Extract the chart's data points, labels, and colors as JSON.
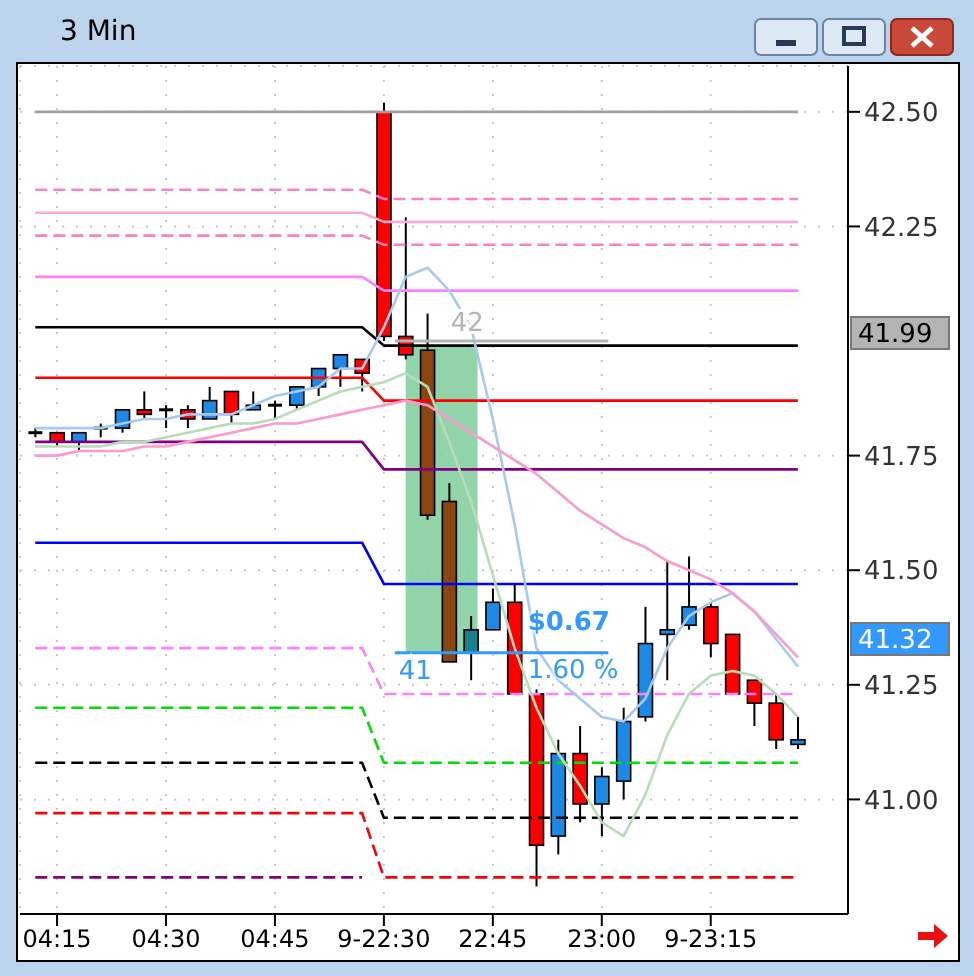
{
  "chart_data": {
    "type": "candlestick",
    "title": "3 Min",
    "categories": [
      null,
      "04:15",
      null,
      null,
      null,
      null,
      "04:30",
      null,
      null,
      null,
      null,
      "04:45",
      null,
      null,
      null,
      null,
      "9-22:30",
      null,
      null,
      null,
      null,
      "22:45",
      null,
      null,
      null,
      null,
      "23:00",
      null,
      null,
      null,
      null,
      "9-23:15",
      null,
      null,
      null,
      null
    ],
    "ohlc": [
      [
        41.8,
        41.81,
        41.79,
        41.8
      ],
      [
        41.8,
        41.8,
        41.77,
        41.78
      ],
      [
        41.78,
        41.8,
        41.76,
        41.8
      ],
      [
        41.81,
        41.82,
        41.79,
        41.81
      ],
      [
        41.81,
        41.85,
        41.8,
        41.85
      ],
      [
        41.85,
        41.89,
        41.83,
        41.84
      ],
      [
        41.85,
        41.86,
        41.81,
        41.85
      ],
      [
        41.85,
        41.86,
        41.81,
        41.83
      ],
      [
        41.83,
        41.9,
        41.83,
        41.87
      ],
      [
        41.89,
        41.89,
        41.82,
        41.84
      ],
      [
        41.85,
        41.89,
        41.85,
        41.86
      ],
      [
        41.86,
        41.87,
        41.83,
        41.86
      ],
      [
        41.86,
        41.9,
        41.85,
        41.9
      ],
      [
        41.9,
        41.94,
        41.88,
        41.94
      ],
      [
        41.94,
        41.97,
        41.9,
        41.97
      ],
      [
        41.96,
        41.96,
        41.89,
        41.93
      ],
      [
        42.5,
        42.52,
        42.0,
        42.01
      ],
      [
        42.01,
        42.27,
        41.96,
        41.97
      ],
      [
        41.98,
        42.06,
        41.61,
        41.62
      ],
      [
        41.65,
        41.69,
        41.3,
        41.3
      ],
      [
        41.32,
        41.4,
        41.26,
        41.37
      ],
      [
        41.37,
        41.46,
        41.37,
        41.43
      ],
      [
        41.43,
        41.47,
        41.23,
        41.23
      ],
      [
        41.23,
        41.24,
        40.81,
        40.9
      ],
      [
        40.92,
        41.13,
        40.88,
        41.1
      ],
      [
        41.1,
        41.16,
        40.95,
        40.99
      ],
      [
        40.99,
        41.07,
        40.92,
        41.05
      ],
      [
        41.04,
        41.2,
        41.0,
        41.17
      ],
      [
        41.18,
        41.42,
        41.17,
        41.34
      ],
      [
        41.36,
        41.52,
        41.26,
        41.37
      ],
      [
        41.38,
        41.53,
        41.37,
        41.42
      ],
      [
        41.42,
        41.43,
        41.31,
        41.34
      ],
      [
        41.36,
        41.36,
        41.23,
        41.23
      ],
      [
        41.26,
        41.26,
        41.16,
        41.21
      ],
      [
        41.21,
        41.23,
        41.11,
        41.13
      ],
      [
        41.12,
        41.18,
        41.11,
        41.13
      ]
    ],
    "colors": [
      "#000000",
      "#ff0000",
      "#1e88e5",
      "#000000",
      "#1e88e5",
      "#ff0000",
      "#000000",
      "#ff0000",
      "#1e88e5",
      "#ff0000",
      "#1e88e5",
      "#000000",
      "#1e88e5",
      "#1e88e5",
      "#1e88e5",
      "#ff0000",
      "#ff0000",
      "#ff0000",
      "#8b4513",
      "#8b4513",
      "#1a7f8f",
      "#1e88e5",
      "#ff0000",
      "#ff0000",
      "#1e88e5",
      "#ff0000",
      "#1e88e5",
      "#1e88e5",
      "#1e88e5",
      "#1e88e5",
      "#1e88e5",
      "#ff0000",
      "#ff0000",
      "#ff0000",
      "#ff0000",
      "#1e88e5"
    ],
    "series": [
      {
        "type": "line",
        "color": "#a0a0a0",
        "values": [
          42.5,
          42.5,
          42.5,
          42.5,
          42.5,
          42.5,
          42.5,
          42.5,
          42.5,
          42.5,
          42.5,
          42.5,
          42.5,
          42.5,
          42.5,
          42.5,
          42.5,
          42.5,
          42.5,
          42.5,
          42.5,
          42.5,
          42.5,
          42.5,
          42.5,
          42.5,
          42.5,
          42.5,
          42.5,
          42.5,
          42.5,
          42.5,
          42.5,
          42.5,
          42.5,
          42.5
        ]
      },
      {
        "type": "line",
        "color": "#ff80c0",
        "line_style": "dashed",
        "values": [
          42.33,
          42.33,
          42.33,
          42.33,
          42.33,
          42.33,
          42.33,
          42.33,
          42.33,
          42.33,
          42.33,
          42.33,
          42.33,
          42.33,
          42.33,
          42.33,
          42.31,
          42.31,
          42.31,
          42.31,
          42.31,
          42.31,
          42.31,
          42.31,
          42.31,
          42.31,
          42.31,
          42.31,
          42.31,
          42.31,
          42.31,
          42.31,
          42.31,
          42.31,
          42.31,
          42.31
        ]
      },
      {
        "type": "line",
        "color": "#ffaad4",
        "values": [
          42.28,
          42.28,
          42.28,
          42.28,
          42.28,
          42.28,
          42.28,
          42.28,
          42.28,
          42.28,
          42.28,
          42.28,
          42.28,
          42.28,
          42.28,
          42.28,
          42.26,
          42.26,
          42.26,
          42.26,
          42.26,
          42.26,
          42.26,
          42.26,
          42.26,
          42.26,
          42.26,
          42.26,
          42.26,
          42.26,
          42.26,
          42.26,
          42.26,
          42.26,
          42.26,
          42.26
        ]
      },
      {
        "type": "line",
        "color": "#ff80c0",
        "line_style": "dashed",
        "values": [
          42.23,
          42.23,
          42.23,
          42.23,
          42.23,
          42.23,
          42.23,
          42.23,
          42.23,
          42.23,
          42.23,
          42.23,
          42.23,
          42.23,
          42.23,
          42.23,
          42.21,
          42.21,
          42.21,
          42.21,
          42.21,
          42.21,
          42.21,
          42.21,
          42.21,
          42.21,
          42.21,
          42.21,
          42.21,
          42.21,
          42.21,
          42.21,
          42.21,
          42.21,
          42.21,
          42.21
        ]
      },
      {
        "type": "line",
        "color": "#ff80ff",
        "values": [
          42.14,
          42.14,
          42.14,
          42.14,
          42.14,
          42.14,
          42.14,
          42.14,
          42.14,
          42.14,
          42.14,
          42.14,
          42.14,
          42.14,
          42.14,
          42.14,
          42.11,
          42.11,
          42.11,
          42.11,
          42.11,
          42.11,
          42.11,
          42.11,
          42.11,
          42.11,
          42.11,
          42.11,
          42.11,
          42.11,
          42.11,
          42.11,
          42.11,
          42.11,
          42.11,
          42.11
        ]
      },
      {
        "type": "line",
        "color": "#000000",
        "values": [
          42.03,
          42.03,
          42.03,
          42.03,
          42.03,
          42.03,
          42.03,
          42.03,
          42.03,
          42.03,
          42.03,
          42.03,
          42.03,
          42.03,
          42.03,
          42.03,
          41.99,
          41.99,
          41.99,
          41.99,
          41.99,
          41.99,
          41.99,
          41.99,
          41.99,
          41.99,
          41.99,
          41.99,
          41.99,
          41.99,
          41.99,
          41.99,
          41.99,
          41.99,
          41.99,
          41.99
        ]
      },
      {
        "type": "line",
        "color": "#ff0000",
        "values": [
          41.92,
          41.92,
          41.92,
          41.92,
          41.92,
          41.92,
          41.92,
          41.92,
          41.92,
          41.92,
          41.92,
          41.92,
          41.92,
          41.92,
          41.92,
          41.92,
          41.87,
          41.87,
          41.87,
          41.87,
          41.87,
          41.87,
          41.87,
          41.87,
          41.87,
          41.87,
          41.87,
          41.87,
          41.87,
          41.87,
          41.87,
          41.87,
          41.87,
          41.87,
          41.87,
          41.87
        ]
      },
      {
        "type": "line",
        "color": "#800080",
        "values": [
          41.78,
          41.78,
          41.78,
          41.78,
          41.78,
          41.78,
          41.78,
          41.78,
          41.78,
          41.78,
          41.78,
          41.78,
          41.78,
          41.78,
          41.78,
          41.78,
          41.72,
          41.72,
          41.72,
          41.72,
          41.72,
          41.72,
          41.72,
          41.72,
          41.72,
          41.72,
          41.72,
          41.72,
          41.72,
          41.72,
          41.72,
          41.72,
          41.72,
          41.72,
          41.72,
          41.72
        ]
      },
      {
        "type": "line",
        "color": "#0000ff",
        "values": [
          41.56,
          41.56,
          41.56,
          41.56,
          41.56,
          41.56,
          41.56,
          41.56,
          41.56,
          41.56,
          41.56,
          41.56,
          41.56,
          41.56,
          41.56,
          41.56,
          41.47,
          41.47,
          41.47,
          41.47,
          41.47,
          41.47,
          41.47,
          41.47,
          41.47,
          41.47,
          41.47,
          41.47,
          41.47,
          41.47,
          41.47,
          41.47,
          41.47,
          41.47,
          41.47,
          41.47
        ]
      },
      {
        "type": "line",
        "color": "#ff80ff",
        "line_style": "dashed",
        "values": [
          41.33,
          41.33,
          41.33,
          41.33,
          41.33,
          41.33,
          41.33,
          41.33,
          41.33,
          41.33,
          41.33,
          41.33,
          41.33,
          41.33,
          41.33,
          41.33,
          41.23,
          41.23,
          41.23,
          41.23,
          41.23,
          41.23,
          41.23,
          41.23,
          41.23,
          41.23,
          41.23,
          41.23,
          41.23,
          41.23,
          41.23,
          41.23,
          41.23,
          41.23,
          41.23,
          41.23
        ]
      },
      {
        "type": "line",
        "color": "#00dd00",
        "line_style": "dashed",
        "values": [
          41.2,
          41.2,
          41.2,
          41.2,
          41.2,
          41.2,
          41.2,
          41.2,
          41.2,
          41.2,
          41.2,
          41.2,
          41.2,
          41.2,
          41.2,
          41.2,
          41.08,
          41.08,
          41.08,
          41.08,
          41.08,
          41.08,
          41.08,
          41.08,
          41.08,
          41.08,
          41.08,
          41.08,
          41.08,
          41.08,
          41.08,
          41.08,
          41.08,
          41.08,
          41.08,
          41.08
        ]
      },
      {
        "type": "line",
        "color": "#000000",
        "line_style": "dashed",
        "values": [
          41.08,
          41.08,
          41.08,
          41.08,
          41.08,
          41.08,
          41.08,
          41.08,
          41.08,
          41.08,
          41.08,
          41.08,
          41.08,
          41.08,
          41.08,
          41.08,
          40.96,
          40.96,
          40.96,
          40.96,
          40.96,
          40.96,
          40.96,
          40.96,
          40.96,
          40.96,
          40.96,
          40.96,
          40.96,
          40.96,
          40.96,
          40.96,
          40.96,
          40.96,
          40.96,
          40.96
        ]
      },
      {
        "type": "line",
        "color": "#ff0000",
        "line_style": "dashed",
        "values": [
          40.97,
          40.97,
          40.97,
          40.97,
          40.97,
          40.97,
          40.97,
          40.97,
          40.97,
          40.97,
          40.97,
          40.97,
          40.97,
          40.97,
          40.97,
          40.97,
          40.83,
          40.83,
          40.83,
          40.83,
          40.83,
          40.83,
          40.83,
          40.83,
          40.83,
          40.83,
          40.83,
          40.83,
          40.83,
          40.83,
          40.83,
          40.83,
          40.83,
          40.83,
          40.83,
          40.83
        ]
      },
      {
        "type": "line",
        "color": "#800080",
        "line_style": "dashed",
        "values": [
          40.83,
          40.83,
          40.83,
          40.83,
          40.83,
          40.83,
          40.83,
          40.83,
          40.83,
          40.83,
          40.83,
          40.83,
          40.83,
          40.83,
          40.83,
          40.83,
          null,
          null,
          null,
          null,
          null,
          null,
          null,
          null,
          null,
          null,
          null,
          null,
          null,
          null,
          null,
          null,
          null,
          null,
          null,
          null
        ]
      },
      {
        "type": "line",
        "color": "#a8c8f0",
        "values": [
          41.81,
          41.81,
          41.81,
          41.81,
          41.82,
          41.83,
          41.83,
          41.84,
          41.84,
          41.84,
          41.86,
          41.88,
          41.89,
          41.9,
          41.94,
          41.94,
          42.03,
          42.14,
          42.16,
          42.11,
          42.03,
          41.83,
          41.6,
          41.33,
          41.26,
          41.22,
          41.18,
          41.17,
          41.22,
          41.33,
          41.4,
          41.43,
          41.45,
          41.41,
          41.35,
          41.29
        ]
      },
      {
        "type": "line",
        "color": "#b8dcb8",
        "values": [
          41.77,
          41.77,
          41.77,
          41.77,
          41.78,
          41.78,
          41.79,
          41.8,
          41.81,
          41.82,
          41.82,
          41.83,
          41.85,
          41.87,
          41.89,
          41.9,
          41.91,
          41.93,
          41.9,
          41.78,
          41.65,
          41.49,
          41.33,
          41.2,
          41.1,
          41.03,
          40.95,
          40.92,
          41.01,
          41.14,
          41.23,
          41.27,
          41.28,
          41.27,
          41.23,
          41.18
        ]
      },
      {
        "type": "line",
        "color": "#ff99cc",
        "values": [
          41.75,
          41.75,
          41.76,
          41.76,
          41.76,
          41.77,
          41.77,
          41.78,
          41.79,
          41.8,
          41.81,
          41.82,
          41.82,
          41.83,
          41.84,
          41.85,
          41.86,
          41.87,
          41.86,
          41.83,
          41.8,
          41.77,
          41.74,
          41.71,
          41.67,
          41.63,
          41.6,
          41.57,
          41.55,
          41.52,
          41.5,
          41.48,
          41.45,
          41.41,
          41.36,
          41.31
        ]
      }
    ],
    "ylim": [
      40.75,
      42.6
    ],
    "yticks": [
      {
        "value": 41.0,
        "label": "41.00"
      },
      {
        "value": 41.25,
        "label": "41.25"
      },
      {
        "value": 41.5,
        "label": "41.50"
      },
      {
        "value": 41.75,
        "label": "41.75"
      },
      {
        "value": 42.25,
        "label": "42.25"
      },
      {
        "value": 42.5,
        "label": "42.50"
      }
    ],
    "grid": true,
    "ref_lines": [
      {
        "axis": "y",
        "value": 42.0,
        "label": "42",
        "color": "#b4b4b4"
      },
      {
        "axis": "y",
        "value": 41.32,
        "label": "41",
        "color": "#3399ff"
      }
    ],
    "bands": [
      {
        "axis": "y",
        "from": 41.32,
        "to": 41.99,
        "color": "#7fcc9a"
      }
    ],
    "annotations": [
      "$0.67",
      "1.60 %",
      "41.99",
      "41.32"
    ]
  }
}
